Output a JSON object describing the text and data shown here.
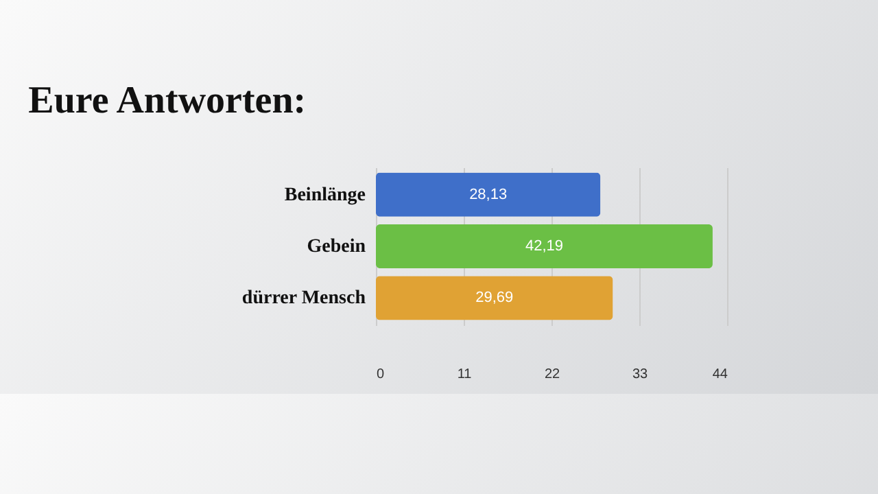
{
  "chart_data": {
    "type": "bar",
    "orientation": "horizontal",
    "title": "Eure Antworten:",
    "categories": [
      "Beinlänge",
      "Gebein",
      "dürrer Mensch"
    ],
    "values": [
      28.13,
      42.19,
      29.69
    ],
    "colors": [
      "#3f6fc9",
      "#6bbf45",
      "#e0a234"
    ],
    "value_labels": [
      "28,13",
      "42,19",
      "29,69"
    ],
    "xlim": [
      0,
      44
    ],
    "xticks": [
      0,
      11,
      22,
      33,
      44
    ],
    "grid": "x"
  }
}
